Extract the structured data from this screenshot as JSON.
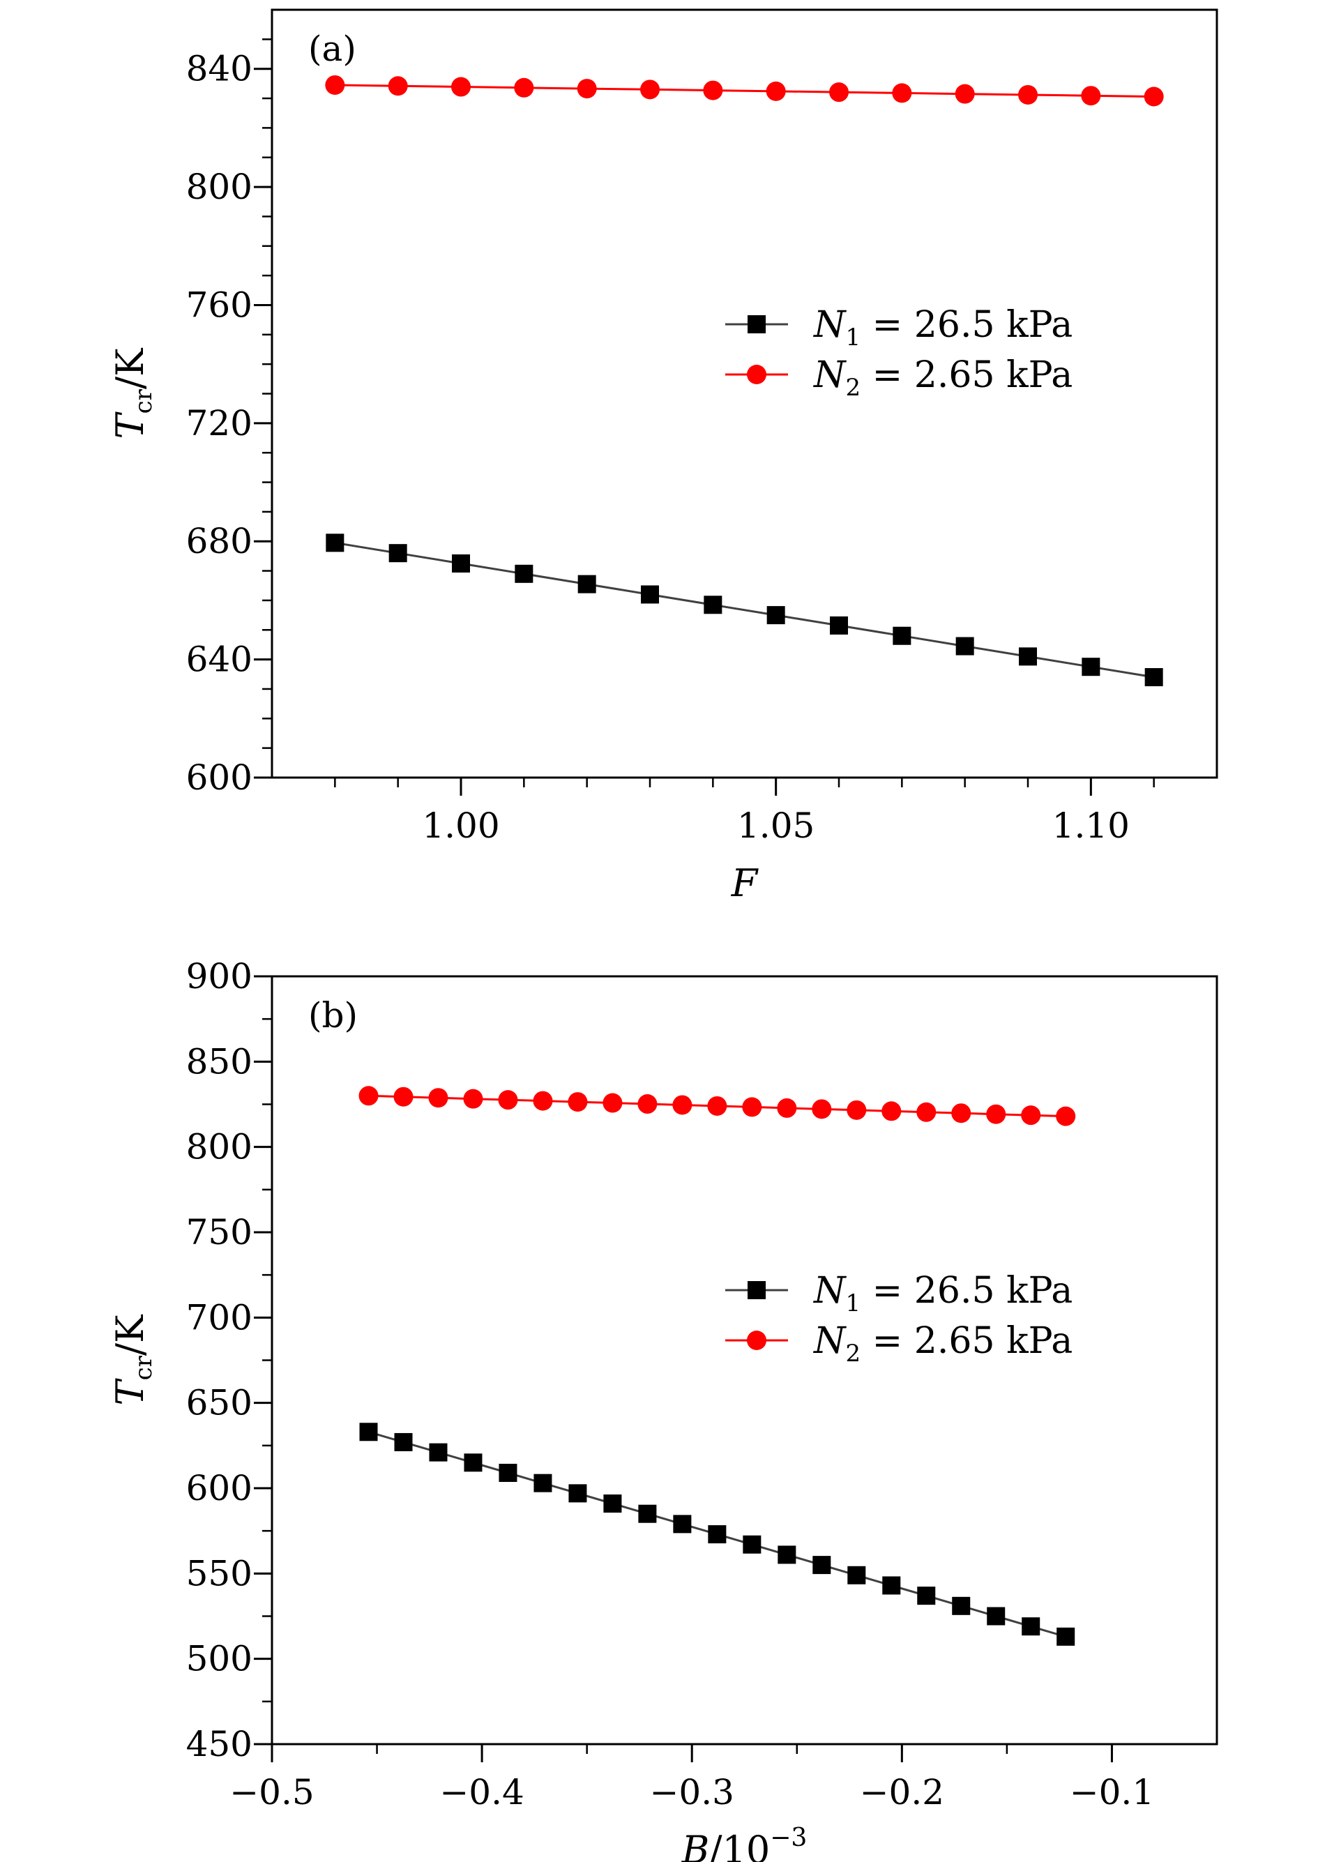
{
  "chart_data": [
    {
      "type": "line",
      "panel_label": "(a)",
      "xlabel": {
        "var": "F",
        "unit": ""
      },
      "ylabel": {
        "var": "T",
        "sub": "cr",
        "unit": "/K"
      },
      "xlim": [
        0.97,
        1.12
      ],
      "ylim": [
        600,
        860
      ],
      "xticks": [
        1.0,
        1.05,
        1.1
      ],
      "xtick_labels": [
        "1.00",
        "1.05",
        "1.10"
      ],
      "x_minor_step": 0.01,
      "yticks": [
        600,
        640,
        680,
        720,
        760,
        800,
        840
      ],
      "ytick_labels": [
        "600",
        "640",
        "680",
        "720",
        "760",
        "800",
        "840"
      ],
      "y_minor_step": 10,
      "legend_position": "center-right",
      "x": [
        0.98,
        0.99,
        1.0,
        1.01,
        1.02,
        1.03,
        1.04,
        1.05,
        1.06,
        1.07,
        1.08,
        1.09,
        1.1,
        1.11
      ],
      "series": [
        {
          "name_var": "N",
          "name_sub": "1",
          "name_value": "= 26.5 kPa",
          "marker": "square",
          "line_color": "#404040",
          "marker_color": "#000000",
          "values": [
            679.5,
            676,
            672.5,
            669,
            665.5,
            662,
            658.5,
            655,
            651.5,
            648,
            644.5,
            641,
            637.5,
            634
          ]
        },
        {
          "name_var": "N",
          "name_sub": "2",
          "name_value": "= 2.65 kPa",
          "marker": "circle",
          "line_color": "#ff0000",
          "marker_color": "#ff0000",
          "values": [
            834.5,
            834.2,
            833.9,
            833.6,
            833.3,
            833,
            832.7,
            832.4,
            832.1,
            831.8,
            831.5,
            831.2,
            830.9,
            830.6
          ]
        }
      ]
    },
    {
      "type": "line",
      "panel_label": "(b)",
      "xlabel": {
        "var": "B",
        "unit": "/10",
        "sup": "−3"
      },
      "ylabel": {
        "var": "T",
        "sub": "cr",
        "unit": "/K"
      },
      "xlim": [
        -0.5,
        -0.05
      ],
      "ylim": [
        450,
        900
      ],
      "xticks": [
        -0.5,
        -0.4,
        -0.3,
        -0.2,
        -0.1
      ],
      "xtick_labels": [
        "−0.5",
        "−0.4",
        "−0.3",
        "−0.2",
        "−0.1"
      ],
      "x_minor_step": 0.05,
      "yticks": [
        450,
        500,
        550,
        600,
        650,
        700,
        750,
        800,
        850,
        900
      ],
      "ytick_labels": [
        "450",
        "500",
        "550",
        "600",
        "650",
        "700",
        "750",
        "800",
        "850",
        "900"
      ],
      "y_minor_step": 25,
      "legend_position": "center-right",
      "x": [
        -0.454,
        -0.4374,
        -0.4208,
        -0.4042,
        -0.3876,
        -0.371,
        -0.3544,
        -0.3378,
        -0.3212,
        -0.3046,
        -0.288,
        -0.2714,
        -0.2548,
        -0.2382,
        -0.2216,
        -0.205,
        -0.1884,
        -0.1718,
        -0.1552,
        -0.1386,
        -0.122
      ],
      "series": [
        {
          "name_var": "N",
          "name_sub": "1",
          "name_value": "= 26.5 kPa",
          "marker": "square",
          "line_color": "#404040",
          "marker_color": "#000000",
          "values": [
            633,
            627,
            621,
            615,
            609,
            603,
            597,
            591,
            585,
            579,
            573,
            567,
            561,
            555,
            549,
            543,
            537,
            531,
            525,
            519,
            513
          ]
        },
        {
          "name_var": "N",
          "name_sub": "2",
          "name_value": "= 2.65 kPa",
          "marker": "circle",
          "line_color": "#ff0000",
          "marker_color": "#ff0000",
          "values": [
            830,
            829.4,
            828.8,
            828.2,
            827.6,
            827,
            826.4,
            825.8,
            825.2,
            824.6,
            824,
            823.4,
            822.8,
            822.2,
            821.6,
            821,
            820.4,
            819.8,
            819.2,
            818.6,
            818
          ]
        }
      ]
    }
  ]
}
